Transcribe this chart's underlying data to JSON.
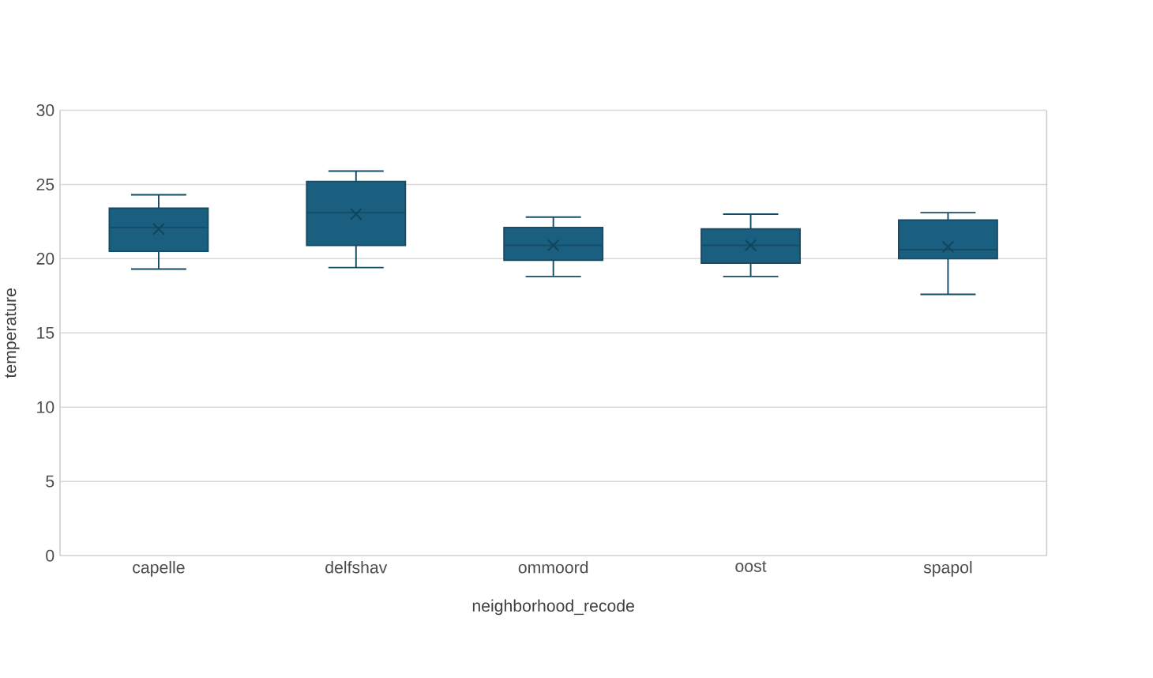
{
  "chart_data": {
    "type": "box",
    "xlabel": "neighborhood_recode",
    "ylabel": "temperature",
    "categories": [
      "capelle",
      "delfshav",
      "ommoord",
      "oost",
      "spapol"
    ],
    "boxes": [
      {
        "low": 19.3,
        "q1": 20.5,
        "median": 22.1,
        "q3": 23.4,
        "high": 24.3,
        "mean": 22.0
      },
      {
        "low": 19.4,
        "q1": 20.9,
        "median": 23.1,
        "q3": 25.2,
        "high": 25.9,
        "mean": 23.0
      },
      {
        "low": 18.8,
        "q1": 19.9,
        "median": 20.9,
        "q3": 22.1,
        "high": 22.8,
        "mean": 20.9
      },
      {
        "low": 18.8,
        "q1": 19.7,
        "median": 20.9,
        "q3": 22.0,
        "high": 23.0,
        "mean": 20.9
      },
      {
        "low": 17.6,
        "q1": 20.0,
        "median": 20.6,
        "q3": 22.6,
        "high": 23.1,
        "mean": 20.8
      }
    ],
    "color": "#1a5f80",
    "ylim": [
      0,
      30
    ],
    "yticks": [
      0,
      5,
      10,
      15,
      20,
      25,
      30
    ],
    "grid": "y"
  }
}
